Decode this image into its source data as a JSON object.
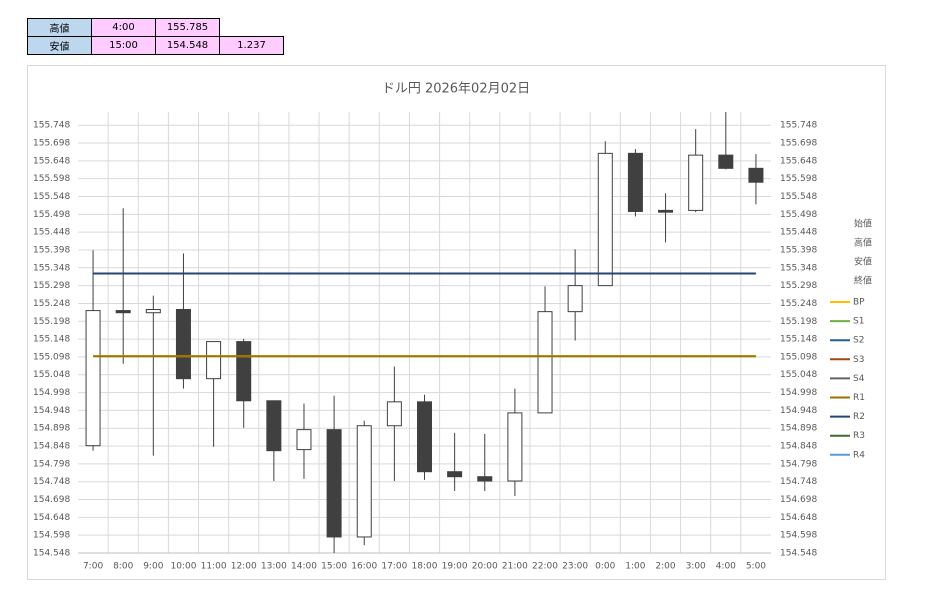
{
  "table": {
    "rows": [
      [
        "高値",
        "4:00",
        "155.785"
      ],
      [
        "安値",
        "15:00",
        "154.548",
        "1.237"
      ]
    ]
  },
  "chart_data": {
    "type": "candlestick",
    "title": "ドル円 2026年02月02日",
    "categories": [
      "7:00",
      "8:00",
      "9:00",
      "10:00",
      "11:00",
      "12:00",
      "13:00",
      "14:00",
      "15:00",
      "16:00",
      "17:00",
      "18:00",
      "19:00",
      "20:00",
      "21:00",
      "22:00",
      "23:00",
      "0:00",
      "1:00",
      "2:00",
      "3:00",
      "4:00",
      "5:00"
    ],
    "series": [
      {
        "name": "始値",
        "values": [
          154.849,
          155.228,
          155.222,
          155.231,
          155.037,
          155.141,
          154.975,
          154.838,
          154.894,
          154.593,
          154.905,
          154.972,
          154.776,
          154.762,
          154.75,
          154.941,
          155.225,
          155.298,
          155.669,
          155.509,
          155.509,
          155.664,
          155.627
        ]
      },
      {
        "name": "高値",
        "values": [
          155.397,
          155.515,
          155.27,
          155.388,
          155.141,
          155.149,
          154.975,
          154.967,
          154.989,
          154.919,
          155.071,
          154.992,
          154.885,
          154.882,
          155.009,
          155.296,
          155.4,
          155.703,
          155.681,
          155.557,
          155.737,
          155.785,
          155.667
        ]
      },
      {
        "name": "安値",
        "values": [
          154.835,
          155.079,
          154.821,
          155.009,
          154.846,
          154.899,
          154.75,
          154.756,
          154.548,
          154.57,
          154.75,
          154.753,
          154.722,
          154.722,
          154.708,
          154.941,
          155.144,
          155.298,
          155.492,
          155.419,
          155.504,
          155.624,
          155.526
        ]
      },
      {
        "name": "終値",
        "values": [
          155.228,
          155.222,
          155.231,
          155.037,
          155.141,
          154.975,
          154.835,
          154.894,
          154.593,
          154.905,
          154.972,
          154.776,
          154.762,
          154.75,
          154.941,
          155.225,
          155.298,
          155.669,
          155.506,
          155.504,
          155.664,
          155.627,
          155.588
        ]
      }
    ],
    "up_color": "#ffffff",
    "down_color": "#404040",
    "levels": [
      {
        "name": "BP",
        "color": "#ffc000",
        "value": 155.1
      },
      {
        "name": "S1",
        "color": "#70ad47",
        "value": null
      },
      {
        "name": "S2",
        "color": "#255e91",
        "value": null
      },
      {
        "name": "S3",
        "color": "#9e480e",
        "value": null
      },
      {
        "name": "S4",
        "color": "#636363",
        "value": null
      },
      {
        "name": "R1",
        "color": "#997300",
        "value": 155.1
      },
      {
        "name": "R2",
        "color": "#264478",
        "value": 155.332
      },
      {
        "name": "R3",
        "color": "#43682b",
        "value": null
      },
      {
        "name": "R4",
        "color": "#5b9bd5",
        "value": null
      }
    ],
    "ylim": [
      154.548,
      155.785
    ],
    "yticks": [
      154.548,
      154.598,
      154.648,
      154.698,
      154.748,
      154.798,
      154.848,
      154.898,
      154.948,
      154.998,
      155.048,
      155.098,
      155.148,
      155.198,
      155.248,
      155.298,
      155.348,
      155.398,
      155.448,
      155.498,
      155.548,
      155.598,
      155.648,
      155.698,
      155.748
    ],
    "grid": true
  }
}
